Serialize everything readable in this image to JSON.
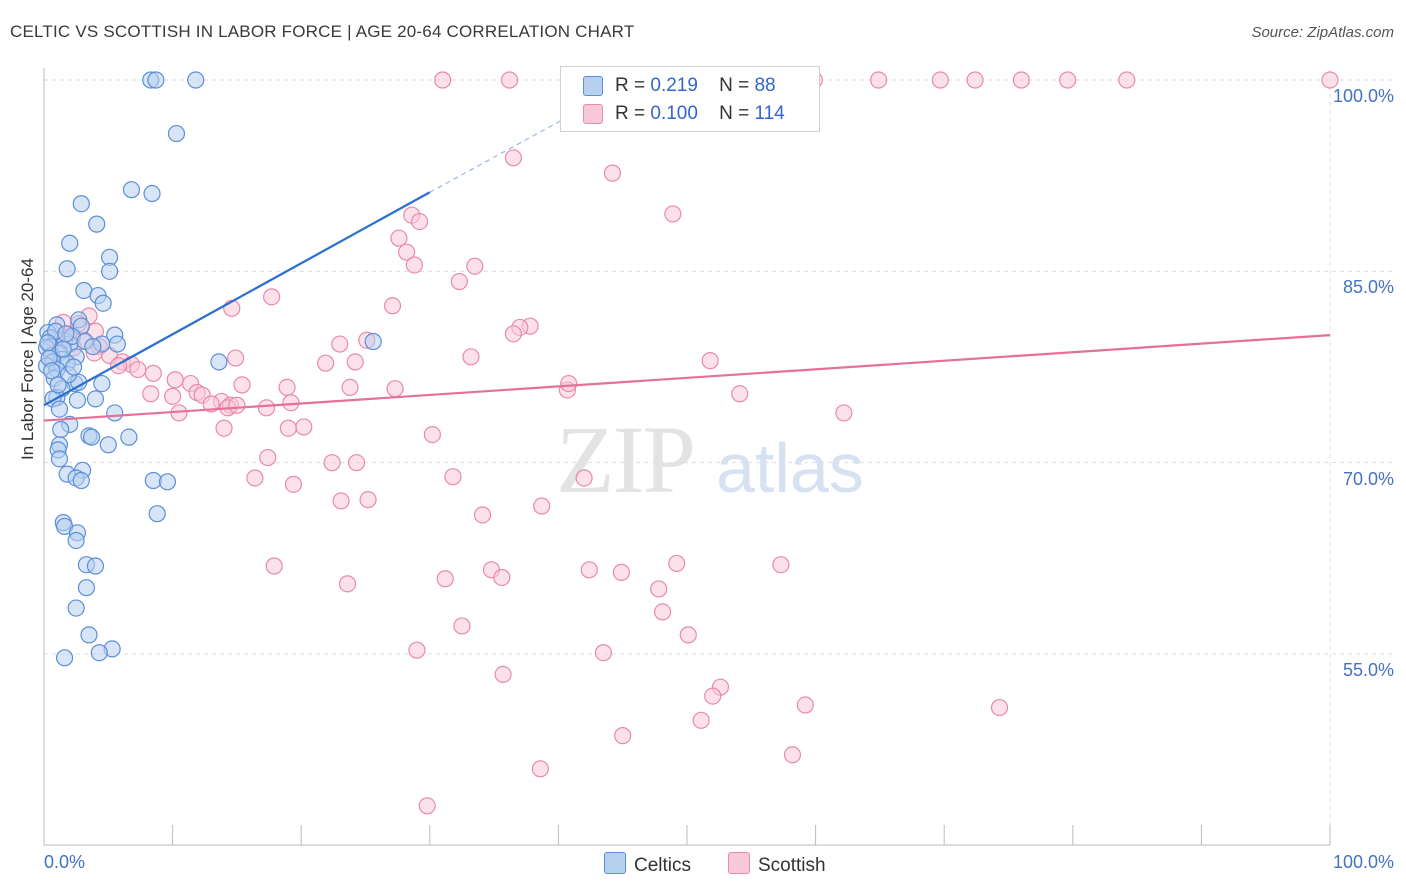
{
  "header": {
    "title": "CELTIC VS SCOTTISH IN LABOR FORCE | AGE 20-64 CORRELATION CHART",
    "source": "Source: ZipAtlas.com"
  },
  "watermark": {
    "zip": "ZIP",
    "atlas": "atlas"
  },
  "legend": {
    "r_label": "R =",
    "n_label": "N =",
    "series": [
      {
        "r": "0.219",
        "n": "88"
      },
      {
        "r": "0.100",
        "n": "114"
      }
    ]
  },
  "bottom_legend": [
    "Celtics",
    "Scottish"
  ],
  "colors": {
    "celtics_fill": "#b8d0f0",
    "celtics_stroke": "#5b8fd6",
    "celtics_line": "#2b6fd1",
    "scottish_fill": "#f9c8d8",
    "scottish_stroke": "#e88aab",
    "scottish_line": "#e5709a",
    "tick_label": "#4472c4",
    "grid": "#dddddd"
  },
  "chart_data": {
    "type": "scatter",
    "ylabel": "In Labor Force | Age 20-64",
    "xlim": [
      0,
      100
    ],
    "ylim": [
      43,
      101
    ],
    "y_ticks": [
      {
        "value": 100,
        "label": "100.0%"
      },
      {
        "value": 85,
        "label": "85.0%"
      },
      {
        "value": 70,
        "label": "70.0%"
      },
      {
        "value": 55,
        "label": "55.0%"
      }
    ],
    "x_tick_labels": [
      {
        "value": 0,
        "label": "0.0%"
      },
      {
        "value": 100,
        "label": "100.0%"
      }
    ],
    "grid": true,
    "legend_position": "top-center",
    "series": [
      {
        "name": "Celtics",
        "r": 0.219,
        "n": 88,
        "trend": {
          "x": [
            0,
            30
          ],
          "y": [
            74.5,
            91.2
          ],
          "dashed_to": [
            42,
            97.8
          ]
        },
        "points": [
          [
            8.3,
            100
          ],
          [
            8.7,
            100
          ],
          [
            11.8,
            100
          ],
          [
            10.3,
            95.8
          ],
          [
            6.8,
            91.4
          ],
          [
            8.4,
            91.1
          ],
          [
            2.9,
            90.3
          ],
          [
            4.1,
            88.7
          ],
          [
            2,
            87.2
          ],
          [
            5.1,
            86.1
          ],
          [
            1.8,
            85.2
          ],
          [
            5.1,
            85
          ],
          [
            3.1,
            83.5
          ],
          [
            4.2,
            83.1
          ],
          [
            4.6,
            82.5
          ],
          [
            2.7,
            81.2
          ],
          [
            1,
            80.8
          ],
          [
            2.9,
            80.7
          ],
          [
            0.3,
            80.2
          ],
          [
            0.5,
            79.8
          ],
          [
            5.5,
            80
          ],
          [
            1.6,
            79.6
          ],
          [
            2,
            79.3
          ],
          [
            0.5,
            79.1
          ],
          [
            4.5,
            79.3
          ],
          [
            5.7,
            79.3
          ],
          [
            0.2,
            79
          ],
          [
            1.2,
            78.6
          ],
          [
            0.6,
            78.4
          ],
          [
            1.4,
            78.1
          ],
          [
            2.5,
            78.3
          ],
          [
            0.7,
            77.9
          ],
          [
            1.8,
            77.8
          ],
          [
            0.2,
            77.6
          ],
          [
            1,
            77.3
          ],
          [
            13.6,
            77.9
          ],
          [
            25.6,
            79.5
          ],
          [
            0.8,
            76.6
          ],
          [
            2.4,
            76.2
          ],
          [
            4.5,
            76.2
          ],
          [
            2.7,
            76.3
          ],
          [
            1.4,
            75.8
          ],
          [
            1,
            75.1
          ],
          [
            0.7,
            75
          ],
          [
            2.6,
            74.9
          ],
          [
            4,
            75
          ],
          [
            5.5,
            73.9
          ],
          [
            2,
            73
          ],
          [
            1.3,
            72.6
          ],
          [
            3.5,
            72.1
          ],
          [
            3.7,
            72
          ],
          [
            6.6,
            72
          ],
          [
            5,
            71.4
          ],
          [
            1.2,
            71.4
          ],
          [
            1.1,
            71
          ],
          [
            1.2,
            70.3
          ],
          [
            3,
            69.4
          ],
          [
            1.8,
            69.1
          ],
          [
            2.5,
            68.8
          ],
          [
            2.9,
            68.6
          ],
          [
            8.5,
            68.6
          ],
          [
            9.6,
            68.5
          ],
          [
            8.8,
            66
          ],
          [
            1.5,
            65.3
          ],
          [
            1.6,
            65
          ],
          [
            2.6,
            64.5
          ],
          [
            2.5,
            63.9
          ],
          [
            3.3,
            62
          ],
          [
            4,
            61.9
          ],
          [
            3.3,
            60.2
          ],
          [
            2.5,
            58.6
          ],
          [
            3.5,
            56.5
          ],
          [
            5.3,
            55.4
          ],
          [
            4.3,
            55.1
          ],
          [
            1.6,
            54.7
          ],
          [
            1.2,
            74.2
          ],
          [
            2.2,
            79.9
          ],
          [
            0.9,
            80.3
          ],
          [
            1.5,
            78.9
          ],
          [
            3.2,
            79.5
          ],
          [
            0.4,
            78.2
          ],
          [
            1.9,
            76.9
          ],
          [
            0.6,
            77.2
          ],
          [
            3.8,
            79.1
          ],
          [
            2.3,
            77.5
          ],
          [
            1.1,
            76.1
          ],
          [
            0.3,
            79.4
          ],
          [
            1.7,
            80.1
          ]
        ]
      },
      {
        "name": "Scottish",
        "r": 0.1,
        "n": 114,
        "trend": {
          "x": [
            0,
            100
          ],
          "y": [
            73.3,
            80
          ]
        },
        "points": [
          [
            31,
            100
          ],
          [
            36.2,
            100
          ],
          [
            50.2,
            100
          ],
          [
            56.4,
            100
          ],
          [
            59.9,
            100
          ],
          [
            64.9,
            100
          ],
          [
            69.7,
            100
          ],
          [
            72.4,
            100
          ],
          [
            76,
            100
          ],
          [
            79.6,
            100
          ],
          [
            84.2,
            100
          ],
          [
            100,
            100
          ],
          [
            36.5,
            93.9
          ],
          [
            44.2,
            92.7
          ],
          [
            28.6,
            89.4
          ],
          [
            29.2,
            88.9
          ],
          [
            27.6,
            87.6
          ],
          [
            48.9,
            89.5
          ],
          [
            28.2,
            86.5
          ],
          [
            28.8,
            85.5
          ],
          [
            33.5,
            85.4
          ],
          [
            32.3,
            84.2
          ],
          [
            17.7,
            83
          ],
          [
            27.1,
            82.3
          ],
          [
            14.6,
            82.1
          ],
          [
            37.8,
            80.7
          ],
          [
            37,
            80.6
          ],
          [
            23,
            79.3
          ],
          [
            25.1,
            79.6
          ],
          [
            36.5,
            80.1
          ],
          [
            4,
            80.3
          ],
          [
            1.9,
            80.1
          ],
          [
            1.7,
            79.8
          ],
          [
            3.1,
            79.6
          ],
          [
            4.3,
            79.1
          ],
          [
            2.3,
            79
          ],
          [
            3.9,
            78.6
          ],
          [
            5.1,
            78.4
          ],
          [
            6.1,
            77.9
          ],
          [
            14.9,
            78.2
          ],
          [
            21.9,
            77.8
          ],
          [
            24.2,
            77.9
          ],
          [
            33.2,
            78.3
          ],
          [
            51.8,
            78
          ],
          [
            6.8,
            77.7
          ],
          [
            5.8,
            77.6
          ],
          [
            7.3,
            77.3
          ],
          [
            8.5,
            77
          ],
          [
            10.2,
            76.5
          ],
          [
            11.4,
            76.2
          ],
          [
            15.4,
            76.1
          ],
          [
            18.9,
            75.9
          ],
          [
            23.8,
            75.9
          ],
          [
            27.3,
            75.8
          ],
          [
            40.7,
            75.7
          ],
          [
            40.8,
            76.2
          ],
          [
            11.9,
            75.5
          ],
          [
            10,
            75.2
          ],
          [
            12.3,
            75.3
          ],
          [
            8.3,
            75.4
          ],
          [
            13.8,
            74.8
          ],
          [
            14.5,
            74.5
          ],
          [
            14.3,
            74.3
          ],
          [
            17.3,
            74.3
          ],
          [
            15,
            74.5
          ],
          [
            13,
            74.6
          ],
          [
            10.5,
            73.9
          ],
          [
            19.2,
            74.7
          ],
          [
            20.2,
            72.8
          ],
          [
            19,
            72.7
          ],
          [
            14,
            72.7
          ],
          [
            30.2,
            72.2
          ],
          [
            54.1,
            75.4
          ],
          [
            62.2,
            73.9
          ],
          [
            17.4,
            70.4
          ],
          [
            22.4,
            70
          ],
          [
            24.3,
            70
          ],
          [
            31.8,
            68.9
          ],
          [
            19.4,
            68.3
          ],
          [
            16.4,
            68.8
          ],
          [
            42,
            68.8
          ],
          [
            25.2,
            67.1
          ],
          [
            23.1,
            67
          ],
          [
            38.7,
            66.6
          ],
          [
            34.1,
            65.9
          ],
          [
            17.9,
            61.9
          ],
          [
            23.6,
            60.5
          ],
          [
            31.2,
            60.9
          ],
          [
            34.8,
            61.6
          ],
          [
            35.6,
            61
          ],
          [
            42.4,
            61.6
          ],
          [
            44.9,
            61.4
          ],
          [
            49.2,
            62.1
          ],
          [
            57.3,
            62
          ],
          [
            47.8,
            60.1
          ],
          [
            48.1,
            58.3
          ],
          [
            32.5,
            57.2
          ],
          [
            50.1,
            56.5
          ],
          [
            29,
            55.3
          ],
          [
            43.5,
            55.1
          ],
          [
            35.7,
            53.4
          ],
          [
            52.6,
            52.4
          ],
          [
            52,
            51.7
          ],
          [
            59.2,
            51
          ],
          [
            74.3,
            50.8
          ],
          [
            51.1,
            49.8
          ],
          [
            45,
            48.6
          ],
          [
            38.6,
            46
          ],
          [
            58.2,
            47.1
          ],
          [
            29.8,
            43.1
          ],
          [
            1.5,
            81
          ],
          [
            3.5,
            81.5
          ],
          [
            2.7,
            80.9
          ],
          [
            0.9,
            79.7
          ]
        ]
      }
    ]
  }
}
